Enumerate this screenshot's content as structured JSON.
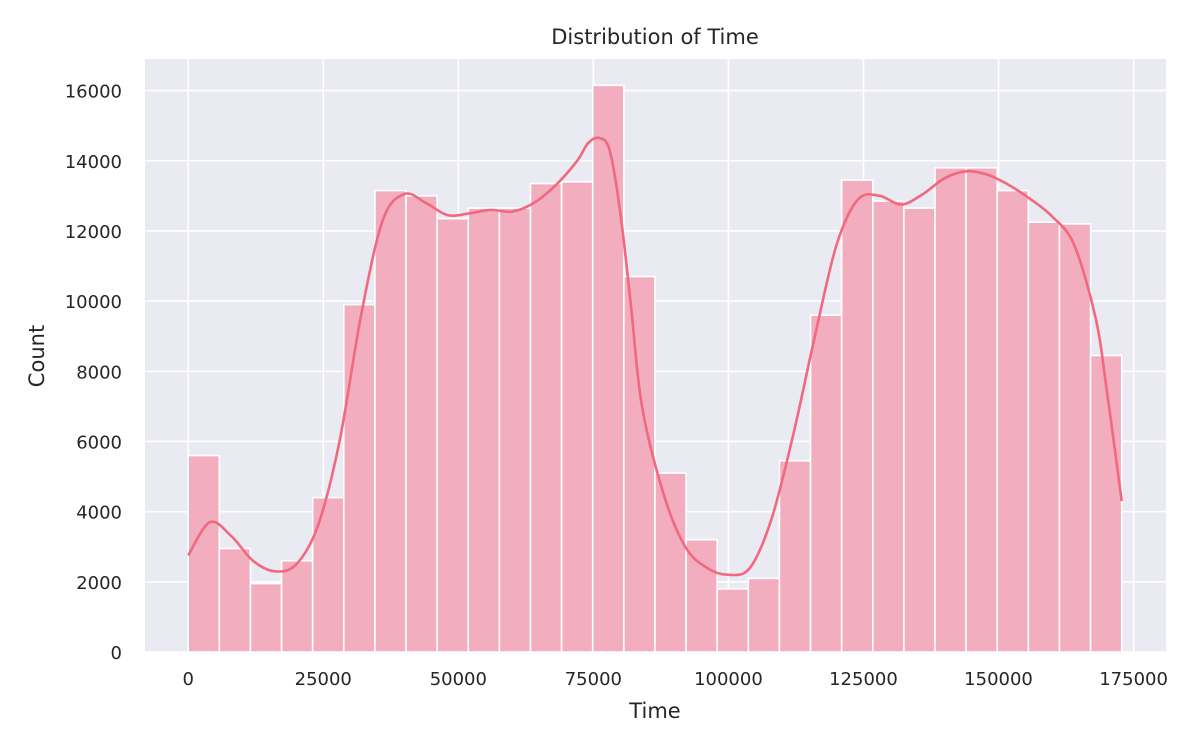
{
  "chart_data": {
    "type": "bar",
    "subtype": "histogram-with-kde",
    "title": "Distribution of Time",
    "xlabel": "Time",
    "ylabel": "Count",
    "xlim": [
      -8000,
      181000
    ],
    "ylim": [
      0,
      16900
    ],
    "x_ticks": [
      0,
      25000,
      50000,
      75000,
      100000,
      125000,
      150000,
      175000
    ],
    "y_ticks": [
      0,
      2000,
      4000,
      6000,
      8000,
      10000,
      12000,
      14000,
      16000
    ],
    "grid": true,
    "bin_edges": [
      0,
      5760,
      11520,
      17280,
      23040,
      28800,
      34560,
      40320,
      46080,
      51840,
      57600,
      63360,
      69120,
      74880,
      80640,
      86400,
      92160,
      97920,
      103680,
      109440,
      115200,
      120960,
      126720,
      132480,
      138240,
      144000,
      149760,
      155520,
      161280,
      167040,
      172800
    ],
    "counts": [
      5600,
      2950,
      1950,
      2600,
      4400,
      9900,
      13150,
      13000,
      12350,
      12650,
      12650,
      13350,
      13400,
      16150,
      10700,
      5100,
      3200,
      1800,
      2100,
      5450,
      9600,
      13450,
      12850,
      12650,
      13800,
      13800,
      13150,
      12250,
      12200,
      8450
    ],
    "kde": {
      "x": [
        0,
        4000,
        8000,
        12000,
        16000,
        20000,
        24000,
        28000,
        32000,
        36000,
        40000,
        44000,
        48000,
        52000,
        56000,
        60000,
        64000,
        68000,
        72000,
        74000,
        76000,
        78000,
        80000,
        82000,
        84000,
        88000,
        92000,
        96000,
        100000,
        104000,
        108000,
        112000,
        116000,
        120000,
        124000,
        128000,
        132000,
        136000,
        140000,
        144000,
        148000,
        152000,
        156000,
        160000,
        164000,
        168000,
        170000,
        172800
      ],
      "y": [
        2750,
        3700,
        3300,
        2600,
        2300,
        2500,
        3600,
        6000,
        9600,
        12300,
        13050,
        12800,
        12450,
        12500,
        12600,
        12550,
        12800,
        13300,
        14000,
        14500,
        14650,
        14300,
        12500,
        9800,
        7000,
        4500,
        3000,
        2400,
        2200,
        2400,
        3800,
        6200,
        9000,
        11600,
        12900,
        13000,
        12750,
        13050,
        13500,
        13700,
        13600,
        13300,
        12900,
        12400,
        11600,
        9500,
        7500,
        4300
      ]
    },
    "colors": {
      "bar_fill": "#f2adbf",
      "bar_edge": "#ffffff",
      "kde_line": "#f0697f",
      "plot_background": "#eaeaf2",
      "grid": "#ffffff"
    }
  }
}
